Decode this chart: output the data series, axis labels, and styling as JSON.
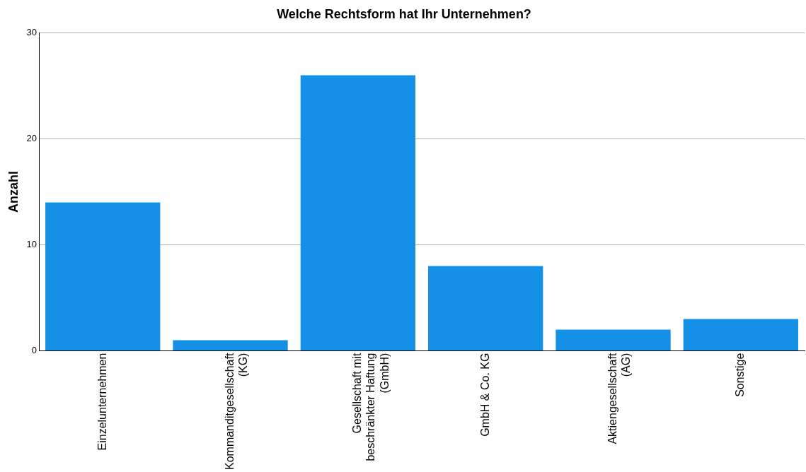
{
  "chart_data": {
    "type": "bar",
    "title": "Welche Rechtsform hat Ihr Unternehmen?",
    "ylabel": "Anzahl",
    "categories": [
      "Einzelunternehmen",
      "Kommanditgesellschaft (KG)",
      "Gesellschaft mit beschränkter Haftung (GmbH)",
      "GmbH & Co. KG",
      "Aktiengesellschaft (AG)",
      "Sonstige"
    ],
    "values": [
      14,
      1,
      26,
      8,
      2,
      3
    ],
    "color": "#1491e6",
    "ylim": [
      0,
      30
    ],
    "yticks": [
      0,
      10,
      20,
      30
    ],
    "grid": "y",
    "legend": false
  }
}
